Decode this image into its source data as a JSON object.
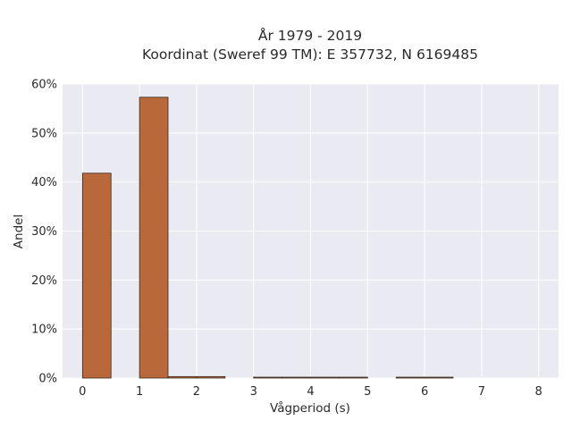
{
  "chart_data": {
    "type": "bar",
    "title_lines": [
      "År 1979 - 2019",
      "Koordinat (Sweref 99 TM): E 357732, N 6169485"
    ],
    "xlabel": "Vågperiod (s)",
    "ylabel": "Andel",
    "x_ticks": [
      "0",
      "1",
      "2",
      "3",
      "4",
      "5",
      "6",
      "7",
      "8"
    ],
    "y_ticks": [
      "0%",
      "10%",
      "20%",
      "30%",
      "40%",
      "50%",
      "60%"
    ],
    "xlim": [
      -0.35,
      8.35
    ],
    "ylim": [
      0,
      60
    ],
    "grid": true,
    "bar_color": "#b8683a",
    "bar_edge_color": "#3a2a20",
    "background_color": "#eaeaf2",
    "bins": [
      {
        "start": 0.0,
        "end": 0.5,
        "value": 41.8
      },
      {
        "start": 0.5,
        "end": 1.0,
        "value": 0.0
      },
      {
        "start": 1.0,
        "end": 1.5,
        "value": 57.3
      },
      {
        "start": 1.5,
        "end": 2.0,
        "value": 0.3
      },
      {
        "start": 2.0,
        "end": 2.5,
        "value": 0.3
      },
      {
        "start": 2.5,
        "end": 3.0,
        "value": 0.0
      },
      {
        "start": 3.0,
        "end": 3.5,
        "value": 0.05
      },
      {
        "start": 3.5,
        "end": 4.0,
        "value": 0.05
      },
      {
        "start": 4.0,
        "end": 4.5,
        "value": 0.05
      },
      {
        "start": 4.5,
        "end": 5.0,
        "value": 0.05
      },
      {
        "start": 5.0,
        "end": 5.5,
        "value": 0.0
      },
      {
        "start": 5.5,
        "end": 6.0,
        "value": 0.05
      },
      {
        "start": 6.0,
        "end": 6.5,
        "value": 0.05
      }
    ]
  }
}
